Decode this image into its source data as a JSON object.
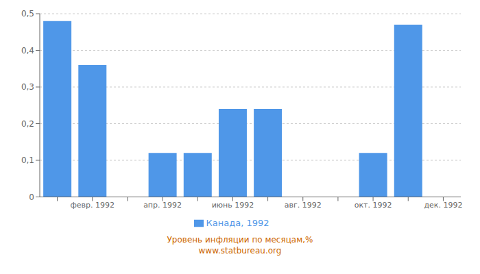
{
  "chart_data": {
    "type": "bar",
    "categories": [
      null,
      "февр. 1992",
      null,
      "апр. 1992",
      null,
      "июнь 1992",
      null,
      "авг. 1992",
      null,
      "окт. 1992",
      null,
      "дек. 1992"
    ],
    "series": [
      {
        "name": "Канада, 1992",
        "color": "#4f97e8",
        "values": [
          0.48,
          0.36,
          0.0,
          0.12,
          0.12,
          0.24,
          0.24,
          0.0,
          0.0,
          0.12,
          0.47,
          0.0
        ]
      }
    ],
    "ylim": [
      0,
      0.5
    ],
    "yticks": [
      0,
      {
        "value": 0.1,
        "label": "0,1"
      },
      {
        "value": 0.2,
        "label": "0,2"
      },
      {
        "value": 0.3,
        "label": "0,3"
      },
      {
        "value": 0.4,
        "label": "0,4"
      },
      {
        "value": 0.5,
        "label": "0,5"
      }
    ],
    "grid": true,
    "legend": "bottom",
    "annotations": [
      "Уровень инфляции по месяцам,%",
      "www.statbureau.org"
    ]
  }
}
